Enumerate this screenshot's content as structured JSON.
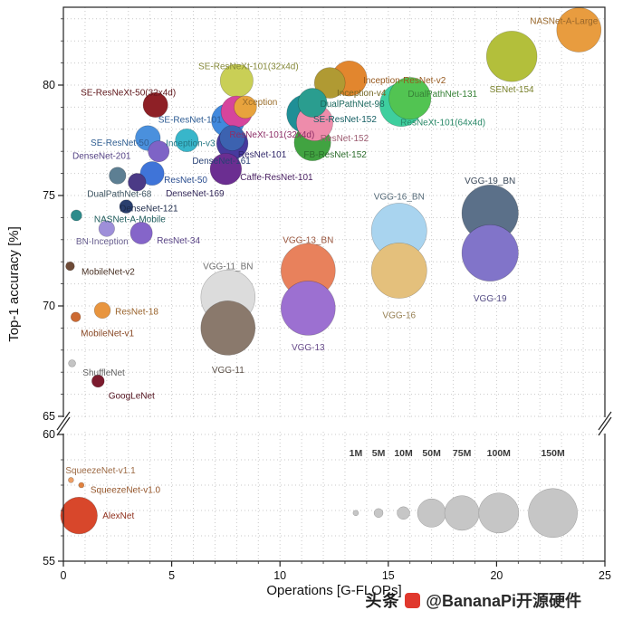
{
  "watermark": {
    "brand": "头条",
    "handle": "@BananaPi开源硬件"
  },
  "chart_data": {
    "type": "scatter",
    "title": "",
    "xlabel": "Operations [G-FLOPs]",
    "ylabel": "Top-1 accuracy [%]",
    "xlim": [
      0,
      25
    ],
    "x_ticks": [
      0,
      5,
      10,
      15,
      20,
      25
    ],
    "ylim_upper": [
      65,
      83.5
    ],
    "ylim_lower": [
      55,
      60
    ],
    "y_ticks_upper": [
      65,
      70,
      75,
      80
    ],
    "y_ticks_lower": [
      55,
      60
    ],
    "axis_break": {
      "between": [
        60,
        65
      ]
    },
    "grid": {
      "style": "dotted",
      "step": 1,
      "color": "#c9c9c9"
    },
    "bubble_size_meaning": "number of parameters (millions)",
    "size_legend": {
      "color": "#c6c6c6",
      "label_color": "#3a3a3a",
      "y_acc": 56.9,
      "label_acc": 59.15,
      "items": [
        {
          "label": "1M",
          "params": 1,
          "flops_x": 13.5
        },
        {
          "label": "5M",
          "params": 5,
          "flops_x": 14.55
        },
        {
          "label": "10M",
          "params": 10,
          "flops_x": 15.7
        },
        {
          "label": "50M",
          "params": 50,
          "flops_x": 17.0
        },
        {
          "label": "75M",
          "params": 75,
          "flops_x": 18.4
        },
        {
          "label": "100M",
          "params": 100,
          "flops_x": 20.1
        },
        {
          "label": "150M",
          "params": 150,
          "flops_x": 22.6
        }
      ]
    },
    "points": [
      {
        "name": "NASNet-A-Large",
        "flops": 23.8,
        "acc": 82.5,
        "params": 88.9,
        "color": "#e89c3f",
        "lp": [
          21,
          -10,
          "end"
        ]
      },
      {
        "name": "SENet-154",
        "flops": 20.7,
        "acc": 81.3,
        "params": 115.2,
        "color": "#b3bf3b",
        "lp": [
          0,
          36,
          "middle"
        ]
      },
      {
        "name": "SE-ResNeXt-101(32x4d)",
        "flops": 8.0,
        "acc": 80.2,
        "params": 49.0,
        "color": "#c9cf56",
        "lp": [
          13,
          -16,
          "middle"
        ]
      },
      {
        "name": "Inception-ResNet-v2",
        "flops": 13.2,
        "acc": 80.3,
        "params": 55.8,
        "color": "#e2862e",
        "lp": [
          61,
          2,
          "middle"
        ]
      },
      {
        "name": "Inception-v4",
        "flops": 12.3,
        "acc": 80.1,
        "params": 42.7,
        "color": "#b09a33",
        "lp": [
          35,
          11,
          "middle"
        ]
      },
      {
        "name": "DualPathNet-131",
        "flops": 16.0,
        "acc": 79.4,
        "params": 79.5,
        "color": "#52c452",
        "lp": [
          36,
          -5,
          "middle"
        ]
      },
      {
        "name": "ResNeXt-101(64x4d)",
        "flops": 15.6,
        "acc": 79.1,
        "params": 83.5,
        "color": "#3ecf9e",
        "lp": [
          46,
          19,
          "middle"
        ]
      },
      {
        "name": "DualPathNet-98",
        "flops": 11.5,
        "acc": 79.2,
        "params": 37.7,
        "color": "#2a9d8f",
        "lp": [
          44,
          1,
          "middle"
        ]
      },
      {
        "name": "SE-ResNet-152",
        "flops": 11.2,
        "acc": 78.7,
        "params": 66.8,
        "color": "#1f8f96",
        "lp": [
          43,
          6,
          "middle"
        ]
      },
      {
        "name": "ResNet-152",
        "flops": 11.6,
        "acc": 78.3,
        "params": 60.2,
        "color": "#ee8cab",
        "lp": [
          33,
          17,
          "middle"
        ]
      },
      {
        "name": "FB-ResNet-152",
        "flops": 11.5,
        "acc": 77.4,
        "params": 60.3,
        "color": "#41a341",
        "lp": [
          25,
          13,
          "middle"
        ]
      },
      {
        "name": "Xception",
        "flops": 8.4,
        "acc": 79.0,
        "params": 22.9,
        "color": "#e8a33d",
        "lp": [
          16,
          -6,
          "middle"
        ]
      },
      {
        "name": "SE-ResNet-101",
        "flops": 7.6,
        "acc": 78.4,
        "params": 49.3,
        "color": "#4189dd",
        "lp": [
          -42,
          -1,
          "middle"
        ]
      },
      {
        "name": "ResNeXt-101(32x4d)",
        "flops": 8.0,
        "acc": 78.8,
        "params": 44.2,
        "color": "#d6459c",
        "lp": [
          39,
          25,
          "middle"
        ]
      },
      {
        "name": "SE-ResNeXt-50(32x4d)",
        "flops": 4.25,
        "acc": 79.1,
        "params": 27.6,
        "color": "#8e2026",
        "lp": [
          -30,
          -14,
          "middle"
        ]
      },
      {
        "name": "SE-ResNet-50",
        "flops": 3.9,
        "acc": 77.6,
        "params": 28.1,
        "color": "#4a90dd",
        "lp": [
          -31,
          5,
          "middle"
        ]
      },
      {
        "name": "Inception-v3",
        "flops": 5.7,
        "acc": 77.5,
        "params": 23.8,
        "color": "#38b6ca",
        "lp": [
          4,
          3,
          "middle"
        ]
      },
      {
        "name": "DenseNet-201",
        "flops": 4.4,
        "acc": 77.0,
        "params": 20.0,
        "color": "#7e63c6",
        "lp": [
          -63,
          5,
          "middle"
        ]
      },
      {
        "name": "DenseNet-161",
        "flops": 7.8,
        "acc": 77.6,
        "params": 28.7,
        "color": "#3c62b0",
        "lp": [
          -12,
          25,
          "middle"
        ]
      },
      {
        "name": "ResNet-101",
        "flops": 7.8,
        "acc": 77.35,
        "params": 44.5,
        "color": "#473a9e",
        "lp": [
          33,
          12,
          "middle"
        ]
      },
      {
        "name": "Caffe-ResNet-101",
        "flops": 7.5,
        "acc": 76.2,
        "params": 44.5,
        "color": "#6b2e91",
        "lp": [
          56,
          9,
          "middle"
        ]
      },
      {
        "name": "ResNet-50",
        "flops": 4.1,
        "acc": 76.0,
        "params": 25.6,
        "color": "#3f74d8",
        "lp": [
          37,
          7,
          "middle"
        ]
      },
      {
        "name": "DualPathNet-68",
        "flops": 2.5,
        "acc": 75.9,
        "params": 12.6,
        "color": "#5d7f93",
        "lp": [
          2,
          20,
          "middle"
        ]
      },
      {
        "name": "DenseNet-169",
        "flops": 3.4,
        "acc": 75.6,
        "params": 14.2,
        "color": "#4b3a86",
        "lp": [
          64,
          12,
          "middle"
        ]
      },
      {
        "name": "DenseNet-121",
        "flops": 2.9,
        "acc": 74.5,
        "params": 8.0,
        "color": "#2a3f6e",
        "lp": [
          25,
          2,
          "middle"
        ]
      },
      {
        "name": "NASNet-A-Mobile",
        "flops": 0.6,
        "acc": 74.1,
        "params": 5.3,
        "color": "#2e8b8b",
        "lp": [
          59,
          4,
          "middle"
        ]
      },
      {
        "name": "BN-Inception",
        "flops": 2.0,
        "acc": 73.5,
        "params": 11.3,
        "color": "#9e8fd9",
        "lp": [
          -5,
          14,
          "middle"
        ]
      },
      {
        "name": "ResNet-34",
        "flops": 3.6,
        "acc": 73.3,
        "params": 21.8,
        "color": "#8565c9",
        "lp": [
          41,
          8,
          "middle"
        ]
      },
      {
        "name": "MobileNet-v2",
        "flops": 0.31,
        "acc": 71.8,
        "params": 3.5,
        "color": "#6e4b37",
        "lp": [
          42,
          6,
          "middle"
        ]
      },
      {
        "name": "VGG-11_BN",
        "flops": 7.6,
        "acc": 70.4,
        "params": 132.9,
        "color": "#dcdcdc",
        "lp": [
          0,
          -34,
          "middle"
        ]
      },
      {
        "name": "VGG-11",
        "flops": 7.6,
        "acc": 69.0,
        "params": 132.9,
        "color": "#8a796c",
        "lp": [
          0,
          46,
          "middle"
        ]
      },
      {
        "name": "VGG-13_BN",
        "flops": 11.3,
        "acc": 71.6,
        "params": 133.0,
        "color": "#e8815c",
        "lp": [
          0,
          -34,
          "middle"
        ]
      },
      {
        "name": "VGG-13",
        "flops": 11.3,
        "acc": 69.9,
        "params": 133.0,
        "color": "#9c70d1",
        "lp": [
          0,
          43,
          "middle"
        ]
      },
      {
        "name": "VGG-16_BN",
        "flops": 15.5,
        "acc": 73.4,
        "params": 138.4,
        "color": "#a9d4ef",
        "lp": [
          0,
          -38,
          "middle"
        ]
      },
      {
        "name": "VGG-16",
        "flops": 15.5,
        "acc": 71.6,
        "params": 138.4,
        "color": "#e4c07c",
        "lp": [
          0,
          49,
          "middle"
        ]
      },
      {
        "name": "VGG-19_BN",
        "flops": 19.7,
        "acc": 74.2,
        "params": 143.7,
        "color": "#5b7089",
        "lp": [
          0,
          -36,
          "middle"
        ]
      },
      {
        "name": "VGG-19",
        "flops": 19.7,
        "acc": 72.4,
        "params": 143.7,
        "color": "#8174c9",
        "lp": [
          0,
          50,
          "middle"
        ]
      },
      {
        "name": "ResNet-18",
        "flops": 1.8,
        "acc": 69.8,
        "params": 11.7,
        "color": "#e8953f",
        "lp": [
          38,
          1,
          "middle"
        ]
      },
      {
        "name": "MobileNet-v1",
        "flops": 0.57,
        "acc": 69.5,
        "params": 4.2,
        "color": "#cc6a33",
        "lp": [
          35,
          18,
          "middle"
        ]
      },
      {
        "name": "ShuffleNet",
        "flops": 0.4,
        "acc": 67.4,
        "params": 2.3,
        "color": "#c4c4c4",
        "lp": [
          35,
          10,
          "middle"
        ]
      },
      {
        "name": "GoogLeNet",
        "flops": 1.6,
        "acc": 66.6,
        "params": 7.0,
        "color": "#7c1b2e",
        "lp": [
          37,
          16,
          "middle"
        ]
      },
      {
        "name": "SqueezeNet-v1.1",
        "flops": 0.35,
        "acc": 58.2,
        "params": 1.2,
        "color": "#eda067",
        "lp": [
          -6,
          -11,
          "start"
        ]
      },
      {
        "name": "SqueezeNet-v1.0",
        "flops": 0.83,
        "acc": 58.0,
        "params": 1.2,
        "color": "#e0813f",
        "lp": [
          10,
          5,
          "start"
        ]
      },
      {
        "name": "AlexNet",
        "flops": 0.72,
        "acc": 56.8,
        "params": 61.0,
        "color": "#d8472b",
        "lp": [
          26,
          0,
          "start"
        ]
      }
    ]
  }
}
